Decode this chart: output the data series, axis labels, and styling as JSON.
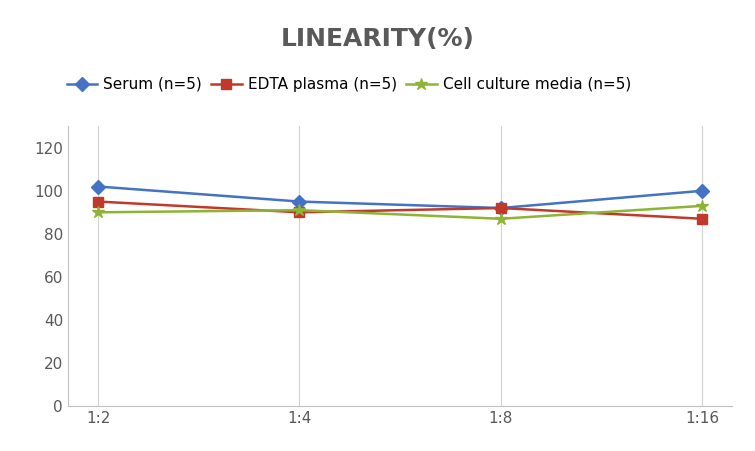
{
  "title": "LINEARITY(%)",
  "x_labels": [
    "1:2",
    "1:4",
    "1:8",
    "1:16"
  ],
  "series": [
    {
      "name": "Serum (n=5)",
      "values": [
        102,
        95,
        92,
        100
      ],
      "color": "#4472C4",
      "marker": "D",
      "markersize": 7,
      "linewidth": 1.8
    },
    {
      "name": "EDTA plasma (n=5)",
      "values": [
        95,
        90,
        92,
        87
      ],
      "color": "#C0392B",
      "marker": "s",
      "markersize": 7,
      "linewidth": 1.8
    },
    {
      "name": "Cell culture media (n=5)",
      "values": [
        90,
        91,
        87,
        93
      ],
      "color": "#8DB434",
      "marker": "*",
      "markersize": 9,
      "linewidth": 1.8
    }
  ],
  "ylim": [
    0,
    130
  ],
  "yticks": [
    0,
    20,
    40,
    60,
    80,
    100,
    120
  ],
  "background_color": "#ffffff",
  "grid_color": "#d3d3d3",
  "title_fontsize": 18,
  "title_color": "#595959",
  "legend_fontsize": 11,
  "tick_fontsize": 11,
  "tick_color": "#595959"
}
